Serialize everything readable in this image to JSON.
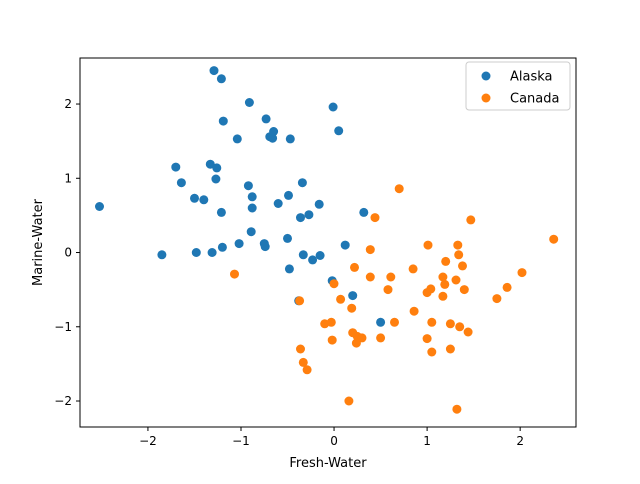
{
  "chart_data": {
    "type": "scatter",
    "xlabel": "Fresh-Water",
    "ylabel": "Marine-Water",
    "xlim": [
      -2.73,
      2.6
    ],
    "ylim": [
      -2.35,
      2.62
    ],
    "xticks": [
      -2,
      -1,
      0,
      1,
      2
    ],
    "yticks": [
      -2,
      -1,
      0,
      1,
      2
    ],
    "grid": false,
    "legend": "top-right",
    "series": [
      {
        "name": "Alaska",
        "color": "#1f77b4",
        "x": [
          -2.52,
          -1.85,
          -1.7,
          -1.64,
          -1.5,
          -1.48,
          -1.4,
          -1.33,
          -1.31,
          -1.29,
          -1.27,
          -1.26,
          -1.21,
          -1.21,
          -1.2,
          -1.19,
          -1.04,
          -1.02,
          -0.92,
          -0.91,
          -0.89,
          -0.88,
          -0.88,
          -0.75,
          -0.74,
          -0.73,
          -0.69,
          -0.66,
          -0.65,
          -0.6,
          -0.5,
          -0.49,
          -0.48,
          -0.47,
          -0.38,
          -0.36,
          -0.34,
          -0.33,
          -0.27,
          -0.23,
          -0.16,
          -0.15,
          -0.02,
          -0.01,
          0.05,
          0.12,
          0.2,
          0.32,
          0.5
        ],
        "y": [
          0.62,
          -0.03,
          1.15,
          0.94,
          0.73,
          0.0,
          0.71,
          1.19,
          0.0,
          2.45,
          0.99,
          1.14,
          2.34,
          0.54,
          0.07,
          1.77,
          1.53,
          0.12,
          0.9,
          2.02,
          0.28,
          0.6,
          0.75,
          0.12,
          0.08,
          1.8,
          1.56,
          1.54,
          1.63,
          0.66,
          0.19,
          0.77,
          -0.22,
          1.53,
          -0.65,
          0.47,
          0.94,
          -0.03,
          0.51,
          -0.1,
          0.65,
          -0.04,
          -0.38,
          1.96,
          1.64,
          0.1,
          -0.58,
          0.54,
          -0.94
        ]
      },
      {
        "name": "Canada",
        "color": "#ff7f0e",
        "x": [
          -1.07,
          -0.37,
          -0.36,
          -0.33,
          -0.29,
          -0.1,
          -0.03,
          -0.02,
          0.0,
          0.07,
          0.16,
          0.19,
          0.2,
          0.22,
          0.24,
          0.25,
          0.3,
          0.39,
          0.39,
          0.44,
          0.5,
          0.58,
          0.61,
          0.65,
          0.7,
          0.85,
          0.86,
          1.0,
          1.0,
          1.01,
          1.04,
          1.05,
          1.05,
          1.17,
          1.17,
          1.19,
          1.2,
          1.25,
          1.25,
          1.31,
          1.32,
          1.33,
          1.34,
          1.35,
          1.38,
          1.4,
          1.44,
          1.47,
          1.75,
          1.86,
          2.02,
          2.36
        ],
        "y": [
          -0.29,
          -0.65,
          -1.3,
          -1.48,
          -1.58,
          -0.96,
          -0.94,
          -1.18,
          -0.42,
          -0.63,
          -2.0,
          -0.75,
          -1.08,
          -0.2,
          -1.22,
          -1.13,
          -1.15,
          0.04,
          -0.33,
          0.47,
          -1.15,
          -0.5,
          -0.33,
          -0.94,
          0.86,
          -0.22,
          -0.79,
          -0.54,
          -1.16,
          0.1,
          -0.49,
          -0.94,
          -1.34,
          -0.33,
          -0.59,
          -0.43,
          -0.12,
          -0.96,
          -1.3,
          -0.37,
          -2.11,
          0.1,
          -0.03,
          -1.0,
          -0.18,
          -0.5,
          -1.07,
          0.44,
          -0.62,
          -0.47,
          -0.27,
          0.18
        ]
      }
    ]
  }
}
